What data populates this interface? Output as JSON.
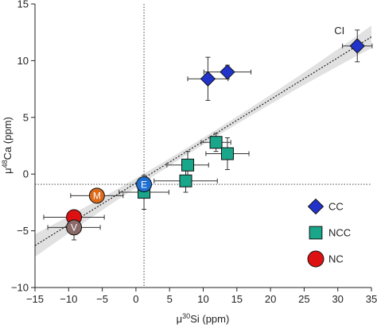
{
  "chart_data": {
    "type": "scatter",
    "xlabel_prefix": "μ",
    "xlabel_sup": "30",
    "xlabel_suffix": "Si (ppm)",
    "ylabel_prefix": "μ",
    "ylabel_sup": "48",
    "ylabel_suffix": "Ca (ppm)",
    "xlim": [
      -15,
      35
    ],
    "ylim": [
      -10,
      15
    ],
    "xticks": [
      -15,
      -10,
      -5,
      0,
      5,
      10,
      15,
      20,
      25,
      30,
      35
    ],
    "yticks": [
      -10,
      -5,
      0,
      5,
      10,
      15
    ],
    "reference_lines": {
      "x": 1.2,
      "y": -0.9
    },
    "regression": {
      "x": [
        -15,
        35
      ],
      "y": [
        -6.3,
        12.1
      ],
      "band_halfwidth_ends": [
        1.0,
        1.0
      ],
      "band_halfwidth_mid": 0.3
    },
    "series": [
      {
        "name": "CC",
        "marker": "diamond",
        "color": "#2233cc",
        "points": [
          {
            "x": 10.7,
            "y": 8.4,
            "xerr": 3.0,
            "yerr": 1.9,
            "label": ""
          },
          {
            "x": 13.6,
            "y": 9.0,
            "xerr": 3.5,
            "yerr": 0.6,
            "label": ""
          },
          {
            "x": 32.9,
            "y": 11.3,
            "xerr": 2.2,
            "yerr": 1.4,
            "label": "CI"
          }
        ]
      },
      {
        "name": "NCC",
        "marker": "square",
        "color": "#1aa68a",
        "points": [
          {
            "x": 1.2,
            "y": -1.6,
            "xerr": 3.7,
            "yerr": 1.5,
            "label": ""
          },
          {
            "x": 7.4,
            "y": -0.6,
            "xerr": 4.7,
            "yerr": 1.0,
            "label": ""
          },
          {
            "x": 7.7,
            "y": 0.8,
            "xerr": 3.1,
            "yerr": 1.2,
            "label": ""
          },
          {
            "x": 11.9,
            "y": 2.8,
            "xerr": 2.2,
            "yerr": 0.8,
            "label": ""
          },
          {
            "x": 13.6,
            "y": 1.8,
            "xerr": 3.2,
            "yerr": 1.4,
            "label": ""
          }
        ]
      },
      {
        "name": "NC",
        "marker": "circle",
        "color": "#dd1111",
        "points": [
          {
            "x": 1.2,
            "y": -0.9,
            "xerr": 0,
            "yerr": 0,
            "label": "E",
            "color": "#1e6fd0"
          },
          {
            "x": -5.8,
            "y": -1.9,
            "xerr": 3.9,
            "yerr": 0,
            "label": "M",
            "color": "#dd6a1a"
          },
          {
            "x": -9.2,
            "y": -3.8,
            "xerr": 4.5,
            "yerr": 0.4,
            "label": ""
          },
          {
            "x": -9.2,
            "y": -4.7,
            "xerr": 3.9,
            "yerr": 1.1,
            "label": "V",
            "color": "#8a6a68"
          }
        ]
      }
    ],
    "legend": {
      "placement": "right",
      "entries": [
        {
          "label": "CC",
          "marker": "diamond",
          "color": "#2233cc"
        },
        {
          "label": "NCC",
          "marker": "square",
          "color": "#1aa68a"
        },
        {
          "label": "NC",
          "marker": "circle",
          "color": "#dd1111"
        }
      ]
    }
  }
}
